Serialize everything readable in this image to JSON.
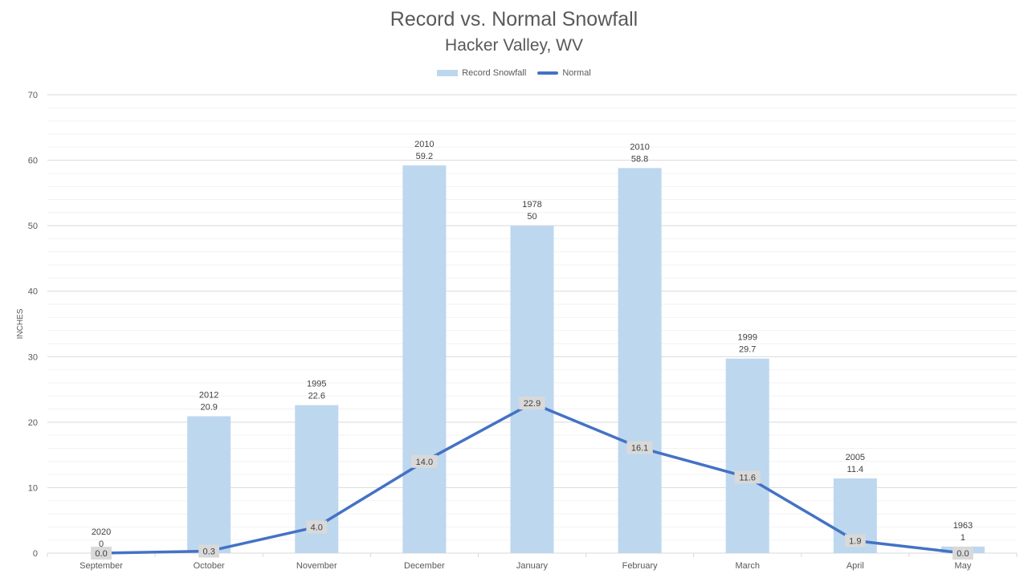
{
  "chart_data": {
    "type": "bar",
    "title": "Record vs. Normal Snowfall",
    "subtitle": "Hacker Valley, WV",
    "xlabel": "",
    "ylabel": "INCHES",
    "ylim": [
      0,
      70
    ],
    "yticks": [
      0,
      10,
      20,
      30,
      40,
      50,
      60,
      70
    ],
    "grid": true,
    "legend_position": "top",
    "categories": [
      "September",
      "October",
      "November",
      "December",
      "January",
      "February",
      "March",
      "April",
      "May"
    ],
    "series": [
      {
        "name": "Record Snowfall",
        "kind": "bar",
        "color": "#BDD7EE",
        "values": [
          0,
          20.9,
          22.6,
          59.2,
          50,
          58.8,
          29.7,
          11.4,
          1
        ],
        "years": [
          "2020",
          "2012",
          "1995",
          "2010",
          "1978",
          "2010",
          "1999",
          "2005",
          "1963"
        ],
        "value_labels": [
          "0",
          "20.9",
          "22.6",
          "59.2",
          "50",
          "58.8",
          "29.7",
          "11.4",
          "1"
        ]
      },
      {
        "name": "Normal",
        "kind": "line",
        "color": "#4472C4",
        "values": [
          0.0,
          0.3,
          4.0,
          14.0,
          22.9,
          16.1,
          11.6,
          1.9,
          0.0
        ],
        "value_labels": [
          "0.0",
          "0.3",
          "4.0",
          "14.0",
          "22.9",
          "16.1",
          "11.6",
          "1.9",
          "0.0"
        ]
      }
    ]
  }
}
